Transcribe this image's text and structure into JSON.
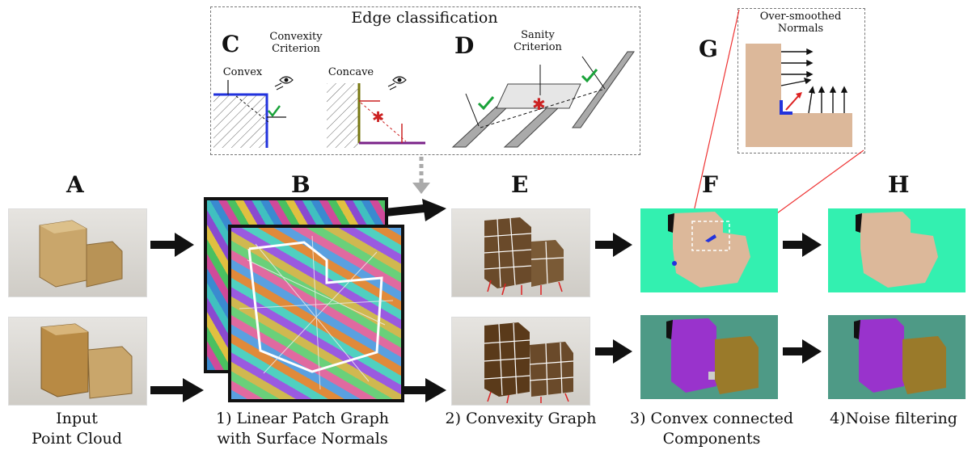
{
  "edge_panel": {
    "title": "Edge classification",
    "label_c": "C",
    "label_d": "D",
    "convexity_criterion": "Convexity\nCriterion",
    "convex": "Convex",
    "concave": "Concave",
    "sanity_criterion": "Sanity\nCriterion"
  },
  "normals_panel": {
    "label_g": "G",
    "title": "Over-smoothed\nNormals"
  },
  "columns": {
    "a": "A",
    "b": "B",
    "e": "E",
    "f": "F",
    "h": "H"
  },
  "captions": {
    "a": "Input\nPoint Cloud",
    "b": "1) Linear Patch Graph\nwith Surface Normals",
    "e": "2) Convexity Graph",
    "f": "3) Convex connected\nComponents",
    "h": "4)Noise filtering"
  },
  "colors": {
    "teal_bg": "#33f0b0",
    "muted_teal_bg": "#4e9a86",
    "skin": "#dcb89a",
    "purple": "#9933cc",
    "olive": "#9a7a2a",
    "wood": "#c9a66b"
  }
}
